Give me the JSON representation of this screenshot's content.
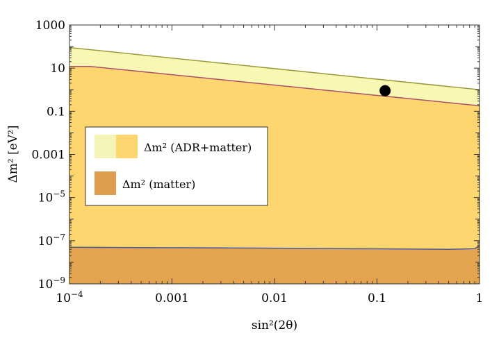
{
  "chart_data": {
    "type": "area",
    "xscale": "log",
    "yscale": "log",
    "xlim": [
      0.0001,
      1
    ],
    "ylim": [
      1e-09,
      1000
    ],
    "xlabel": "sin²(2θ)",
    "ylabel": "Δm² [eV²]",
    "grid": false,
    "legend_placement": "center-left",
    "x_ticks": [
      {
        "value": 0.0001,
        "base": "10",
        "exp": "−4"
      },
      {
        "value": 0.001,
        "label": "0.001"
      },
      {
        "value": 0.01,
        "label": "0.01"
      },
      {
        "value": 0.1,
        "label": "0.1"
      },
      {
        "value": 1,
        "label": "1"
      }
    ],
    "y_ticks": [
      {
        "value": 1e-09,
        "base": "10",
        "exp": "−9"
      },
      {
        "value": 1e-07,
        "base": "10",
        "exp": "−7"
      },
      {
        "value": 1e-05,
        "base": "10",
        "exp": "−5"
      },
      {
        "value": 0.001,
        "label": "0.001"
      },
      {
        "value": 0.1,
        "label": "0.1"
      },
      {
        "value": 10,
        "label": "10"
      },
      {
        "value": 1000,
        "label": "1000"
      }
    ],
    "series": [
      {
        "key": "adr_upper",
        "fill": "#f8f7b3",
        "line": "#9a9a3a",
        "x": [
          0.0001,
          1
        ],
        "y": [
          90,
          1.0
        ]
      },
      {
        "key": "adr_matter",
        "fill": "#fed66f",
        "line": "#a8506a",
        "x": [
          0.0001,
          0.00016,
          1
        ],
        "y": [
          12,
          12,
          0.18
        ]
      },
      {
        "key": "matter",
        "fill": "#e3a34f",
        "line": "#4a5aa0",
        "x": [
          0.0001,
          0.01,
          0.1,
          0.5,
          0.9,
          1
        ],
        "y": [
          5e-08,
          4.5e-08,
          4.2e-08,
          4e-08,
          4.3e-08,
          6e-08
        ]
      }
    ],
    "points": [
      {
        "x": 0.12,
        "y": 0.9,
        "color": "#000000"
      }
    ],
    "legend": [
      {
        "swatches": [
          "#f4f3b8",
          "#fed66f"
        ],
        "label": "Δm² (ADR+matter)"
      },
      {
        "swatches": [
          "#df9e4f"
        ],
        "label": "Δm² (matter)"
      }
    ]
  }
}
